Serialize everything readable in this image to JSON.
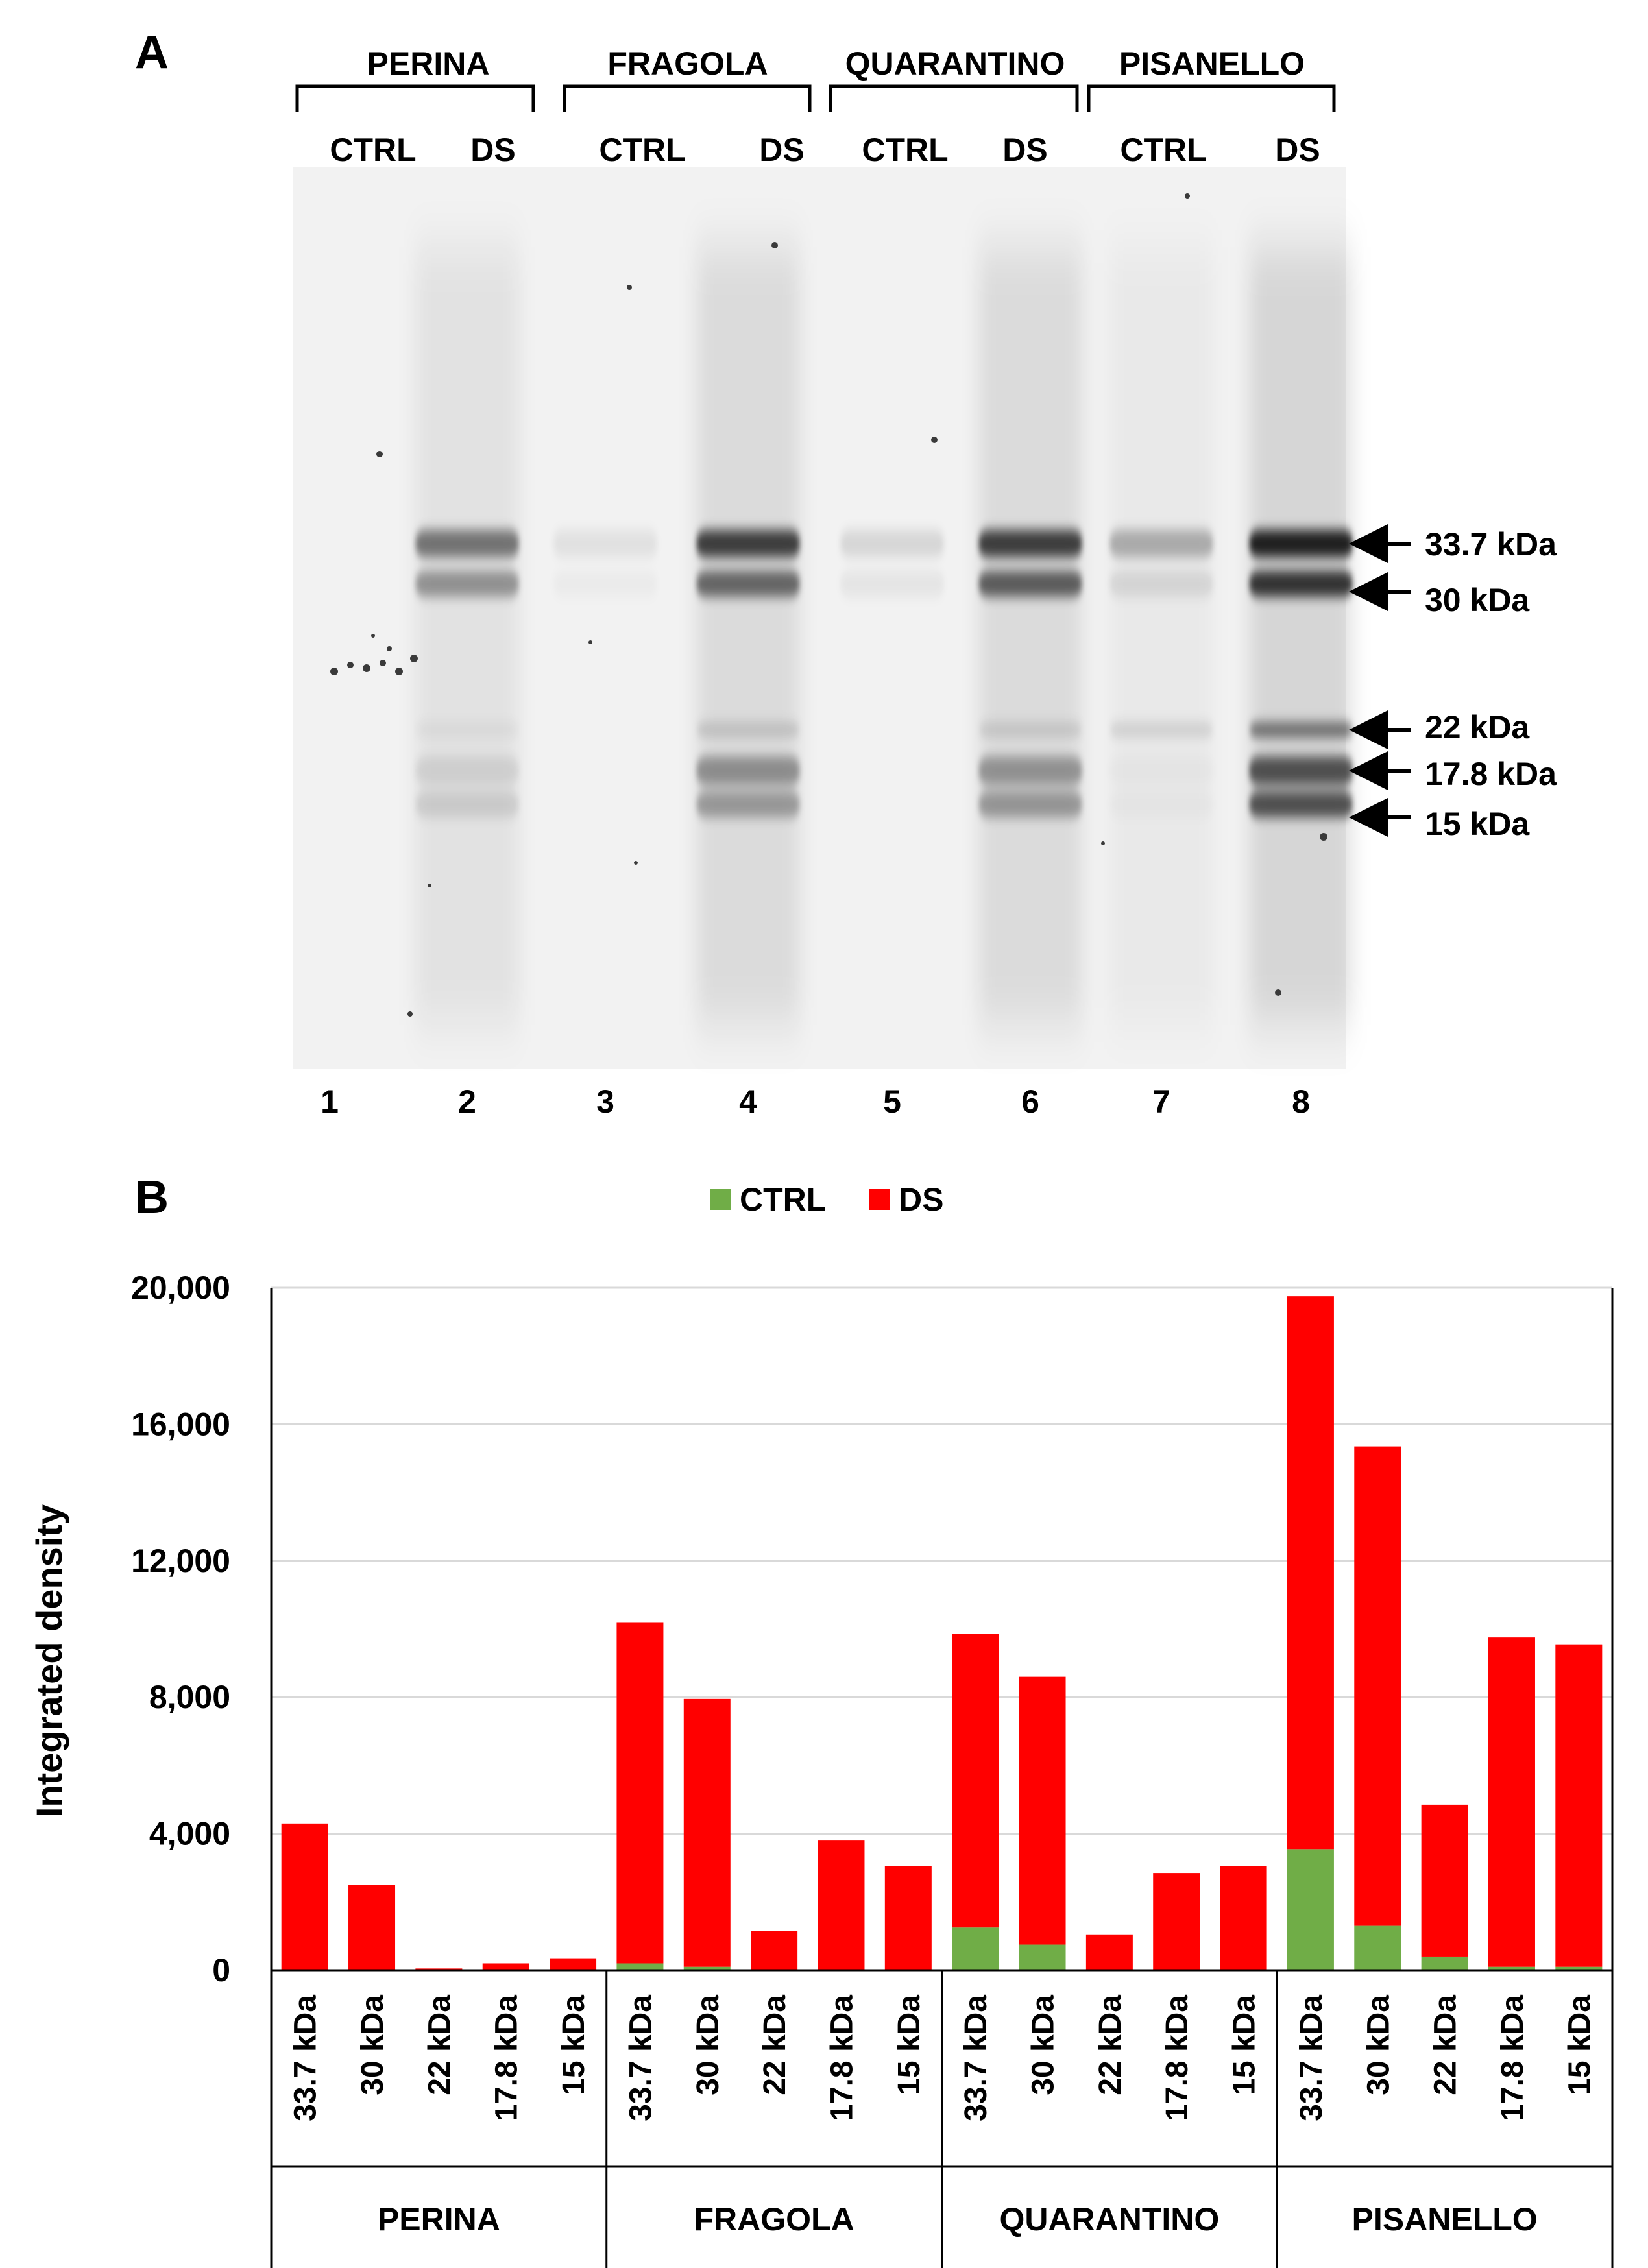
{
  "panel_a": {
    "label": "A",
    "groups": [
      "PERINA",
      "FRAGOLA",
      "QUARANTINO",
      "PISANELLO"
    ],
    "lane_conditions": [
      "CTRL",
      "DS",
      "CTRL",
      "DS",
      "CTRL",
      "DS",
      "CTRL",
      "DS"
    ],
    "lane_numbers": [
      "1",
      "2",
      "3",
      "4",
      "5",
      "6",
      "7",
      "8"
    ],
    "markers": [
      "33.7 kDa",
      "30 kDa",
      "22 kDa",
      "17.8 kDa",
      "15 kDa"
    ],
    "band_intensity": {
      "bands": [
        "33.7 kDa",
        "30 kDa",
        "22 kDa",
        "17.8 kDa",
        "15 kDa"
      ],
      "lanes": [
        [
          0.0,
          0.0,
          0.0,
          0.0,
          0.0
        ],
        [
          0.55,
          0.4,
          0.05,
          0.1,
          0.12
        ],
        [
          0.08,
          0.03,
          0.0,
          0.0,
          0.0
        ],
        [
          0.8,
          0.6,
          0.15,
          0.4,
          0.35
        ],
        [
          0.12,
          0.06,
          0.0,
          0.0,
          0.0
        ],
        [
          0.8,
          0.65,
          0.12,
          0.38,
          0.36
        ],
        [
          0.3,
          0.1,
          0.12,
          0.02,
          0.02
        ],
        [
          0.95,
          0.85,
          0.55,
          0.7,
          0.7
        ]
      ]
    }
  },
  "panel_b": {
    "label": "B",
    "colors": {
      "CTRL": "#70ad47",
      "DS": "#ff0000",
      "grid": "#d9d9d9",
      "axis": "#000000"
    },
    "chart_data": {
      "type": "bar",
      "stacked": true,
      "title": "",
      "xlabel": "",
      "ylabel": "Integrated density",
      "ylim": [
        0,
        20000
      ],
      "yticks": [
        0,
        4000,
        8000,
        12000,
        16000,
        20000
      ],
      "ytick_labels": [
        "0",
        "4,000",
        "8,000",
        "12,000",
        "16,000",
        "20,000"
      ],
      "grid": true,
      "legend_position": "top-center",
      "groups": [
        "PERINA",
        "FRAGOLA",
        "QUARANTINO",
        "PISANELLO"
      ],
      "categories": [
        "33.7 kDa",
        "30 kDa",
        "22 kDa",
        "17.8 kDa",
        "15 kDa"
      ],
      "series": [
        {
          "name": "CTRL",
          "values": [
            [
              0,
              0,
              0,
              0,
              0
            ],
            [
              200,
              100,
              0,
              0,
              0
            ],
            [
              1250,
              750,
              0,
              0,
              0
            ],
            [
              3550,
              1300,
              400,
              100,
              100
            ]
          ]
        },
        {
          "name": "DS",
          "values": [
            [
              4300,
              2500,
              50,
              200,
              350
            ],
            [
              10000,
              7850,
              1150,
              3800,
              3050
            ],
            [
              8600,
              7850,
              1050,
              2850,
              3050
            ],
            [
              16200,
              14050,
              4450,
              9650,
              9450
            ]
          ]
        }
      ]
    }
  }
}
